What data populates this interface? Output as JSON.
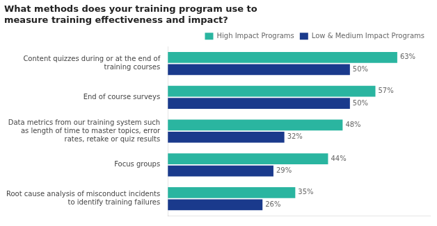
{
  "chart_data": {
    "type": "bar",
    "orientation": "horizontal",
    "title": "What methods does your training program use to\nmeasure training effectiveness and impact?",
    "categories": [
      "Content quizzes during or at the end of\ntraining courses",
      "End of course surveys",
      "Data metrics from our training system such\nas length of time to master topics, error\nrates, retake or quiz results",
      "Focus groups",
      "Root cause analysis of misconduct incidents\nto identify training failures"
    ],
    "series": [
      {
        "name": "High Impact Programs",
        "color": "#2ab5a0",
        "values": [
          63,
          57,
          48,
          44,
          35
        ],
        "value_labels": [
          "63%",
          "57%",
          "48%",
          "44%",
          "35%"
        ]
      },
      {
        "name": "Low & Medium Impact Programs",
        "color": "#1a3a8c",
        "values": [
          50,
          50,
          32,
          29,
          26
        ],
        "value_labels": [
          "50%",
          "50%",
          "32%",
          "29%",
          "26%"
        ]
      }
    ],
    "xlim": [
      0,
      72
    ],
    "grid": false,
    "legend": "upper right",
    "data_labels": true,
    "tick_labels": "y"
  }
}
